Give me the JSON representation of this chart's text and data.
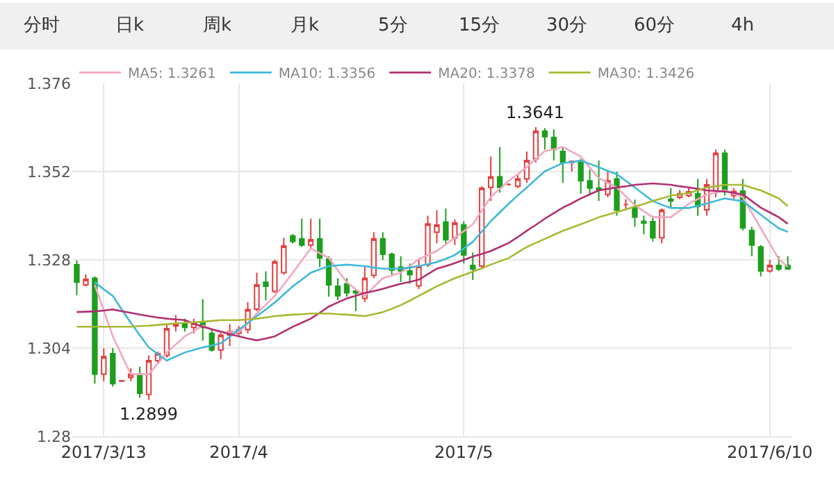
{
  "chart_data": {
    "type": "candlestick",
    "categories": [
      null,
      null,
      null,
      "2017/3/13",
      null,
      null,
      null,
      null,
      null,
      null,
      null,
      null,
      null,
      null,
      null,
      null,
      null,
      null,
      "2017/4",
      null,
      null,
      null,
      null,
      null,
      null,
      null,
      null,
      null,
      null,
      null,
      null,
      null,
      null,
      null,
      null,
      null,
      null,
      null,
      null,
      null,
      null,
      null,
      null,
      "2017/5",
      null,
      null,
      null,
      null,
      null,
      null,
      null,
      null,
      null,
      null,
      null,
      null,
      null,
      null,
      null,
      null,
      null,
      null,
      null,
      null,
      null,
      null,
      null,
      null,
      null,
      null,
      null,
      null,
      null,
      null,
      null,
      null,
      null,
      "2017/6/10",
      null,
      null
    ],
    "ohlc": [
      [
        1.3267,
        1.3278,
        1.3184,
        1.3219
      ],
      [
        1.3212,
        1.3241,
        1.3208,
        1.3227
      ],
      [
        1.323,
        1.3235,
        1.2943,
        1.2969
      ],
      [
        1.2969,
        1.3039,
        1.295,
        1.3017
      ],
      [
        1.3025,
        1.304,
        1.2935,
        1.2943
      ],
      [
        1.295,
        1.2953,
        1.2948,
        1.2951
      ],
      [
        1.296,
        1.2985,
        1.295,
        1.2969
      ],
      [
        1.2969,
        1.299,
        1.2905,
        1.2917
      ],
      [
        1.2914,
        1.302,
        1.2899,
        1.3006
      ],
      [
        1.3006,
        1.303,
        1.3,
        1.3025
      ],
      [
        1.302,
        1.3105,
        1.3014,
        1.3093
      ],
      [
        1.31,
        1.313,
        1.3085,
        1.3105
      ],
      [
        1.3108,
        1.312,
        1.3085,
        1.3096
      ],
      [
        1.3096,
        1.312,
        1.308,
        1.3108
      ],
      [
        1.3108,
        1.3173,
        1.306,
        1.3096
      ],
      [
        1.308,
        1.309,
        1.303,
        1.3035
      ],
      [
        1.3035,
        1.3085,
        1.301,
        1.3075
      ],
      [
        1.3075,
        1.3105,
        1.3045,
        1.3085
      ],
      [
        1.308,
        1.31,
        1.3075,
        1.309
      ],
      [
        1.309,
        1.3165,
        1.308,
        1.3145
      ],
      [
        1.3146,
        1.3245,
        1.314,
        1.3212
      ],
      [
        1.3219,
        1.3249,
        1.317,
        1.3208
      ],
      [
        1.3194,
        1.328,
        1.319,
        1.3275
      ],
      [
        1.3245,
        1.334,
        1.324,
        1.3318
      ],
      [
        1.3345,
        1.335,
        1.3325,
        1.333
      ],
      [
        1.3337,
        1.3392,
        1.3315,
        1.332
      ],
      [
        1.332,
        1.3392,
        1.331,
        1.3335
      ],
      [
        1.3337,
        1.3392,
        1.326,
        1.3285
      ],
      [
        1.3282,
        1.329,
        1.318,
        1.3212
      ],
      [
        1.3208,
        1.323,
        1.317,
        1.3182
      ],
      [
        1.3215,
        1.323,
        1.318,
        1.319
      ],
      [
        1.3195,
        1.32,
        1.314,
        1.319
      ],
      [
        1.3175,
        1.3265,
        1.3165,
        1.323
      ],
      [
        1.3238,
        1.3355,
        1.323,
        1.3337
      ],
      [
        1.3337,
        1.3355,
        1.328,
        1.3295
      ],
      [
        1.3295,
        1.33,
        1.324,
        1.3252
      ],
      [
        1.326,
        1.329,
        1.322,
        1.325
      ],
      [
        1.325,
        1.327,
        1.3215,
        1.324
      ],
      [
        1.3209,
        1.328,
        1.32,
        1.3263
      ],
      [
        1.3267,
        1.34,
        1.326,
        1.3378
      ],
      [
        1.3355,
        1.3415,
        1.3325,
        1.3375
      ],
      [
        1.3383,
        1.342,
        1.332,
        1.3335
      ],
      [
        1.334,
        1.339,
        1.332,
        1.338
      ],
      [
        1.3375,
        1.3385,
        1.327,
        1.3293
      ],
      [
        1.3265,
        1.33,
        1.3225,
        1.3255
      ],
      [
        1.3263,
        1.348,
        1.3255,
        1.3475
      ],
      [
        1.3477,
        1.3561,
        1.344,
        1.3506
      ],
      [
        1.3506,
        1.3587,
        1.3463,
        1.3477
      ],
      [
        1.3485,
        1.3488,
        1.3482,
        1.3485
      ],
      [
        1.348,
        1.351,
        1.3475,
        1.35
      ],
      [
        1.35,
        1.3575,
        1.349,
        1.355
      ],
      [
        1.3555,
        1.3641,
        1.3545,
        1.363
      ],
      [
        1.363,
        1.3638,
        1.358,
        1.3615
      ],
      [
        1.3613,
        1.3635,
        1.355,
        1.358
      ],
      [
        1.3575,
        1.3585,
        1.349,
        1.3545
      ],
      [
        1.3545,
        1.355,
        1.352,
        1.3548
      ],
      [
        1.355,
        1.3555,
        1.346,
        1.3495
      ],
      [
        1.3495,
        1.3525,
        1.346,
        1.3475
      ],
      [
        1.3475,
        1.355,
        1.344,
        1.347
      ],
      [
        1.3458,
        1.352,
        1.345,
        1.3495
      ],
      [
        1.35,
        1.352,
        1.34,
        1.3415
      ],
      [
        1.343,
        1.3445,
        1.3415,
        1.343
      ],
      [
        1.3422,
        1.3444,
        1.337,
        1.3396
      ],
      [
        1.3385,
        1.34,
        1.335,
        1.338
      ],
      [
        1.3384,
        1.34,
        1.333,
        1.334
      ],
      [
        1.334,
        1.342,
        1.3325,
        1.3415
      ],
      [
        1.3445,
        1.3475,
        1.342,
        1.344
      ],
      [
        1.345,
        1.347,
        1.3445,
        1.346
      ],
      [
        1.3455,
        1.3475,
        1.345,
        1.3465
      ],
      [
        1.346,
        1.35,
        1.34,
        1.3425
      ],
      [
        1.3416,
        1.35,
        1.34,
        1.3484
      ],
      [
        1.3468,
        1.358,
        1.345,
        1.357
      ],
      [
        1.357,
        1.358,
        1.3455,
        1.3465
      ],
      [
        1.3455,
        1.3475,
        1.3445,
        1.3466
      ],
      [
        1.3467,
        1.35,
        1.336,
        1.3367
      ],
      [
        1.336,
        1.337,
        1.329,
        1.332
      ],
      [
        1.3315,
        1.332,
        1.3235,
        1.325
      ],
      [
        1.325,
        1.328,
        1.3245,
        1.3265
      ],
      [
        1.3265,
        1.329,
        1.325,
        1.3255
      ],
      [
        1.3265,
        1.329,
        1.3255,
        1.3255
      ]
    ],
    "series": [
      {
        "name": "MA5: 1.3261",
        "type": "line",
        "color": "#f0a8c0",
        "values": [
          null,
          null,
          1.3212,
          1.3142,
          1.3072,
          1.302,
          1.2969,
          1.2969,
          1.2969,
          1.2998,
          1.3028,
          1.305,
          1.3072,
          1.3086,
          1.3101,
          1.3092,
          1.3083,
          1.3083,
          1.3083,
          1.3108,
          1.3134,
          1.3158,
          1.3182,
          1.3213,
          1.3245,
          1.3278,
          1.3311,
          1.3298,
          1.3285,
          1.3252,
          1.3219,
          1.32,
          1.3182,
          1.3206,
          1.323,
          1.3238,
          1.3245,
          1.3263,
          1.3282,
          1.3293,
          1.3304,
          1.3322,
          1.334,
          1.3358,
          1.3377,
          1.3414,
          1.3451,
          1.3473,
          1.3495,
          1.3513,
          1.3532,
          1.3554,
          1.3576,
          1.3581,
          1.3587,
          1.3574,
          1.3561,
          1.3531,
          1.3502,
          1.349,
          1.3477,
          1.3453,
          1.3429,
          1.3412,
          1.3396,
          1.3396,
          1.3396,
          1.3414,
          1.3433,
          1.3445,
          1.3458,
          1.3463,
          1.3469,
          1.346,
          1.3451,
          1.3408,
          1.3366,
          1.3324,
          1.3282,
          1.3261
        ]
      },
      {
        "name": "MA10: 1.3356",
        "type": "line",
        "color": "#3fb8d8",
        "values": [
          null,
          null,
          1.3219,
          1.32,
          1.3182,
          1.3145,
          1.3109,
          1.3075,
          1.3042,
          1.3024,
          1.3006,
          1.3017,
          1.3028,
          1.3035,
          1.3042,
          1.3047,
          1.3053,
          1.3071,
          1.309,
          1.3108,
          1.3127,
          1.3145,
          1.3164,
          1.3186,
          1.3208,
          1.3226,
          1.3245,
          1.3254,
          1.3263,
          1.3265,
          1.3267,
          1.3265,
          1.3263,
          1.3259,
          1.3256,
          1.3256,
          1.3256,
          1.3259,
          1.3263,
          1.3268,
          1.3274,
          1.3283,
          1.3293,
          1.3311,
          1.3329,
          1.3357,
          1.3385,
          1.3409,
          1.3433,
          1.3455,
          1.3477,
          1.3499,
          1.3521,
          1.3532,
          1.3543,
          1.3546,
          1.355,
          1.3541,
          1.3532,
          1.3522,
          1.3513,
          1.3495,
          1.3477,
          1.3458,
          1.344,
          1.343,
          1.3421,
          1.3421,
          1.3421,
          1.3427,
          1.3433,
          1.344,
          1.3447,
          1.3443,
          1.344,
          1.3421,
          1.3403,
          1.3384,
          1.3366,
          1.3356
        ]
      },
      {
        "name": "MA20: 1.3378",
        "type": "line",
        "color": "#b03070",
        "values": [
          1.3138,
          1.3139,
          1.314,
          1.3142,
          1.3145,
          1.314,
          1.3136,
          1.3131,
          1.3127,
          1.3123,
          1.312,
          1.3118,
          1.3116,
          1.3107,
          1.3098,
          1.3091,
          1.3085,
          1.3078,
          1.3072,
          1.3066,
          1.3061,
          1.3066,
          1.3072,
          1.3085,
          1.3098,
          1.3109,
          1.312,
          1.3136,
          1.3153,
          1.3164,
          1.3175,
          1.3182,
          1.319,
          1.3195,
          1.3201,
          1.3208,
          1.3215,
          1.322,
          1.3226,
          1.3241,
          1.3256,
          1.3263,
          1.3271,
          1.328,
          1.3289,
          1.3296,
          1.3304,
          1.3315,
          1.3326,
          1.3342,
          1.3359,
          1.3375,
          1.3392,
          1.3407,
          1.3422,
          1.3434,
          1.3447,
          1.3458,
          1.3469,
          1.3473,
          1.3477,
          1.348,
          1.3484,
          1.3486,
          1.3488,
          1.3486,
          1.3484,
          1.348,
          1.3477,
          1.3473,
          1.3469,
          1.3467,
          1.3466,
          1.3462,
          1.3458,
          1.344,
          1.3422,
          1.3409,
          1.3396,
          1.3378
        ]
      },
      {
        "name": "MA30: 1.3426",
        "type": "line",
        "color": "#a8b832",
        "values": [
          1.3098,
          1.3098,
          1.3098,
          1.3098,
          1.3098,
          1.3098,
          1.3098,
          1.31,
          1.3101,
          1.3103,
          1.3105,
          1.3107,
          1.3109,
          1.311,
          1.3112,
          1.3114,
          1.3116,
          1.3116,
          1.3116,
          1.3118,
          1.312,
          1.3123,
          1.3127,
          1.3129,
          1.3131,
          1.3132,
          1.3134,
          1.3134,
          1.3134,
          1.3132,
          1.3131,
          1.3129,
          1.3127,
          1.3132,
          1.3138,
          1.3147,
          1.3157,
          1.3169,
          1.3182,
          1.3195,
          1.3208,
          1.3219,
          1.323,
          1.3239,
          1.3248,
          1.3257,
          1.3267,
          1.3276,
          1.3285,
          1.33,
          1.3315,
          1.3326,
          1.3337,
          1.3348,
          1.3359,
          1.3368,
          1.3377,
          1.3386,
          1.3396,
          1.3403,
          1.341,
          1.3417,
          1.3425,
          1.3432,
          1.344,
          1.3447,
          1.3455,
          1.3458,
          1.3462,
          1.3469,
          1.3477,
          1.348,
          1.3484,
          1.3484,
          1.3484,
          1.3476,
          1.3469,
          1.3458,
          1.3447,
          1.3426
        ]
      }
    ],
    "ylim": [
      1.28,
      1.376
    ],
    "yticks": [
      1.28,
      1.304,
      1.328,
      1.352,
      1.376
    ],
    "grid": true,
    "legend": "top left",
    "marker": "none",
    "line_style": "solid",
    "annotations": [
      "分时",
      "日k",
      "周k",
      "月k",
      "5分",
      "15分",
      "30分",
      "60分",
      "4h",
      {
        "text": "1.3641",
        "y": 1.3641
      },
      {
        "text": "1.2899",
        "y": 1.2899
      }
    ]
  }
}
